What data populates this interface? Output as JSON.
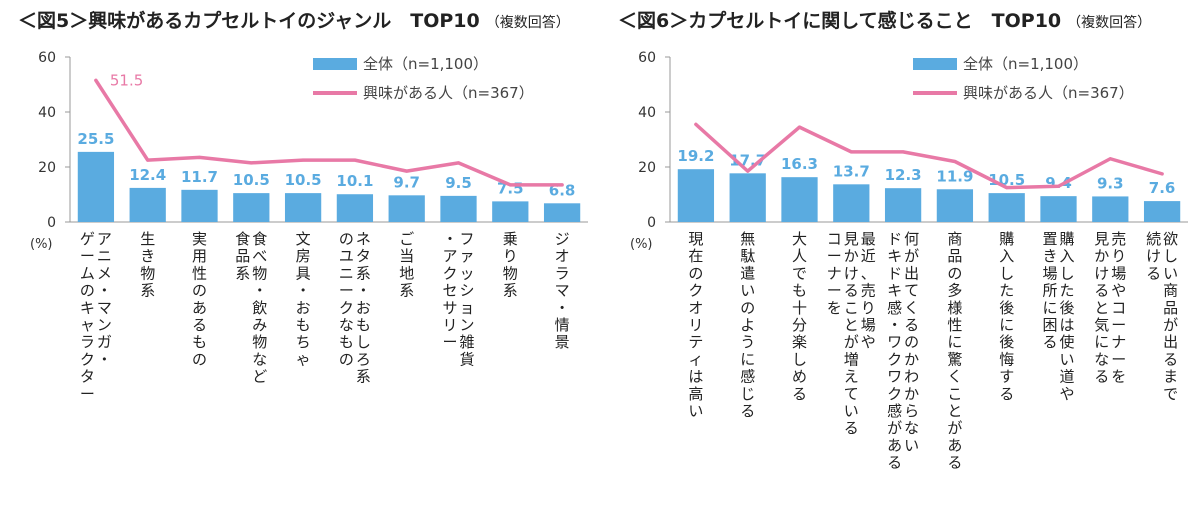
{
  "colors": {
    "bar": "#5aabe0",
    "line": "#e879a6",
    "label_all": "#5aabe0",
    "label_interest": "#e879a6",
    "axis": "#999999"
  },
  "chart_data": [
    {
      "type": "bar",
      "title": "＜図5＞興味があるカプセルトイのジャンル　TOP10",
      "title_note": "（複数回答）",
      "unit": "(%)",
      "ylim": [
        0,
        60
      ],
      "yticks": [
        0,
        20,
        40,
        60
      ],
      "legend_placement": "top-right",
      "categories": [
        [
          "アニメ・マンガ・",
          "ゲームのキャラクター"
        ],
        [
          "生き物系"
        ],
        [
          "実用性のあるもの"
        ],
        [
          "食べ物・飲み物など",
          "食品系"
        ],
        [
          "文房具・おもちゃ"
        ],
        [
          "ネタ系・おもしろ系",
          "のユニークなもの"
        ],
        [
          "ご当地系"
        ],
        [
          "ファッション雑貨",
          "・アクセサリー"
        ],
        [
          "乗り物系"
        ],
        [
          "ジオラマ・情景"
        ]
      ],
      "series": [
        {
          "name": "全体（n=1,100）",
          "kind": "bar",
          "values": [
            25.5,
            12.4,
            11.7,
            10.5,
            10.5,
            10.1,
            9.7,
            9.5,
            7.5,
            6.8
          ],
          "labels": [
            "25.5",
            "12.4",
            "11.7",
            "10.5",
            "10.5",
            "10.1",
            "9.7",
            "9.5",
            "7.5",
            "6.8"
          ]
        },
        {
          "name": "興味がある人（n=367）",
          "kind": "line",
          "values": [
            51.5,
            22.5,
            23.5,
            21.5,
            22.5,
            22.5,
            18.5,
            21.5,
            13.5,
            13.5
          ],
          "labels": [
            "51.5",
            "",
            "",
            "",
            "",
            "",
            "",
            "",
            "",
            ""
          ]
        }
      ]
    },
    {
      "type": "bar",
      "title": "＜図6＞カプセルトイに関して感じること　TOP10",
      "title_note": "（複数回答）",
      "unit": "(%)",
      "ylim": [
        0,
        60
      ],
      "yticks": [
        0,
        20,
        40,
        60
      ],
      "legend_placement": "top-right",
      "categories": [
        [
          "現在のクオリティは高い"
        ],
        [
          "無駄遣いのように感じる"
        ],
        [
          "大人でも十分楽しめる"
        ],
        [
          "最近、売り場や",
          "見かけることが増えている",
          "コーナーを"
        ],
        [
          "何が出てくるのかわからない",
          "ドキドキ感・ワクワク感がある"
        ],
        [
          "商品の多様性に驚くことがある"
        ],
        [
          "購入した後に後悔する"
        ],
        [
          "購入した後は使い道や",
          "置き場所に困る"
        ],
        [
          "売り場やコーナーを",
          "見かけると気になる"
        ],
        [
          "欲しい商品が出るまで",
          "続ける"
        ]
      ],
      "series": [
        {
          "name": "全体（n=1,100）",
          "kind": "bar",
          "values": [
            19.2,
            17.7,
            16.3,
            13.7,
            12.3,
            11.9,
            10.5,
            9.4,
            9.3,
            7.6
          ],
          "labels": [
            "19.2",
            "17.7",
            "16.3",
            "13.7",
            "12.3",
            "11.9",
            "10.5",
            "9.4",
            "9.3",
            "7.6"
          ]
        },
        {
          "name": "興味がある人（n=367）",
          "kind": "line",
          "values": [
            35.5,
            18.5,
            34.5,
            25.5,
            25.5,
            22.0,
            12.5,
            13.0,
            23.0,
            17.5
          ],
          "labels": [
            "",
            "",
            "",
            "",
            "",
            "",
            "",
            "",
            "",
            ""
          ]
        }
      ]
    }
  ]
}
